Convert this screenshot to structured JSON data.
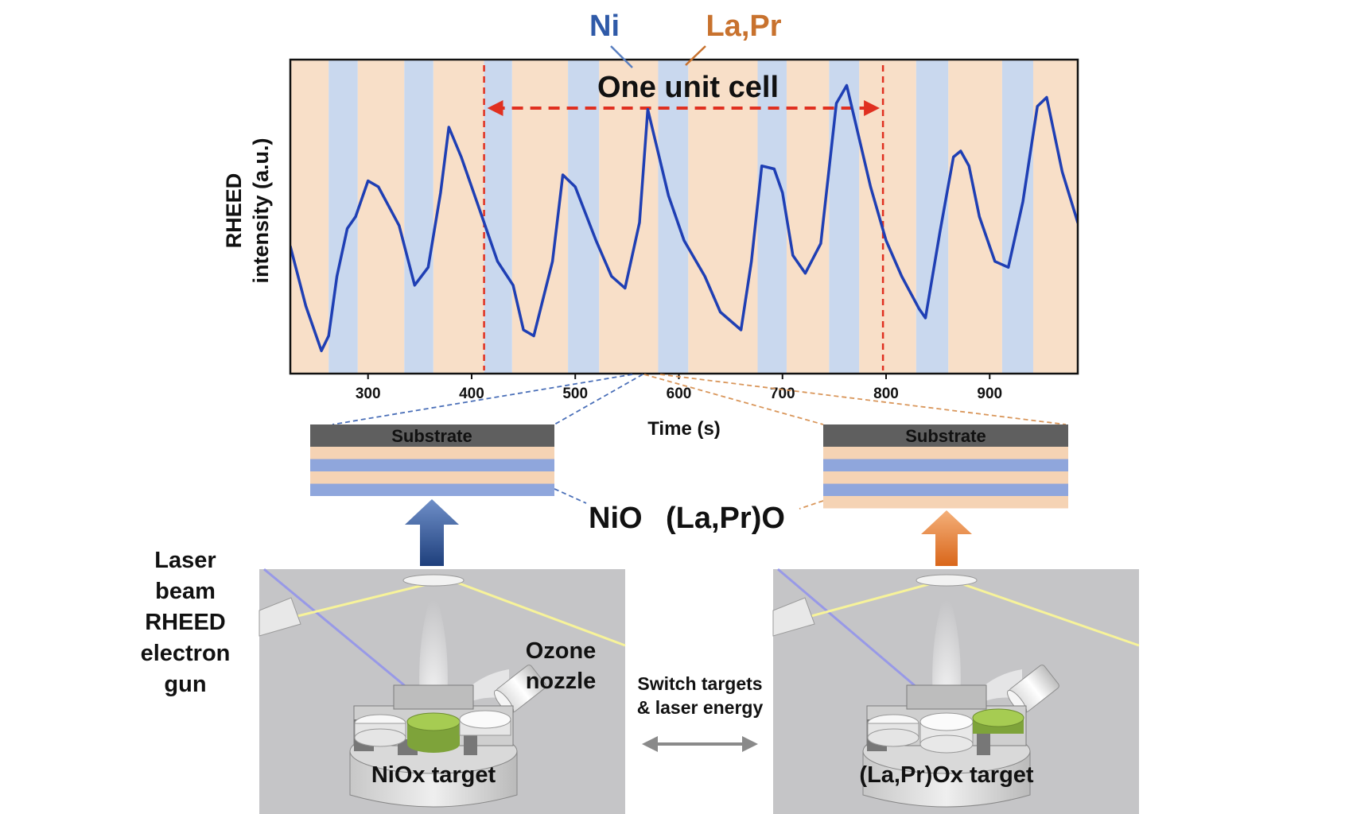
{
  "chart_data": {
    "type": "line",
    "title": "",
    "xlabel": "Time (s)",
    "ylabel": "RHEED intensity (a.u.)",
    "ylabel_lines": [
      "RHEED",
      "intensity (a.u.)"
    ],
    "xlim": [
      225,
      985
    ],
    "ylim": [
      0,
      1
    ],
    "x_ticks": [
      300,
      400,
      500,
      600,
      700,
      800,
      900
    ],
    "x_tick_labels": [
      "300",
      "400",
      "500",
      "600",
      "700",
      "800",
      "900"
    ],
    "grid": false,
    "series": [
      {
        "name": "RHEED intensity",
        "color": "#1f3fb4",
        "x": [
          225,
          240,
          255,
          262,
          270,
          280,
          288,
          300,
          310,
          330,
          345,
          358,
          370,
          378,
          390,
          410,
          425,
          440,
          450,
          460,
          478,
          488,
          500,
          520,
          535,
          548,
          562,
          570,
          590,
          605,
          625,
          640,
          660,
          670,
          680,
          692,
          700,
          710,
          722,
          737,
          752,
          762,
          785,
          800,
          815,
          832,
          838,
          852,
          865,
          872,
          880,
          890,
          905,
          918,
          932,
          946,
          955,
          970,
          985
        ],
        "y": [
          0.4,
          0.2,
          0.05,
          0.1,
          0.3,
          0.46,
          0.5,
          0.62,
          0.6,
          0.47,
          0.27,
          0.33,
          0.58,
          0.8,
          0.7,
          0.5,
          0.35,
          0.27,
          0.12,
          0.1,
          0.35,
          0.64,
          0.6,
          0.42,
          0.3,
          0.26,
          0.48,
          0.86,
          0.57,
          0.42,
          0.3,
          0.18,
          0.12,
          0.35,
          0.67,
          0.66,
          0.58,
          0.37,
          0.31,
          0.41,
          0.88,
          0.94,
          0.6,
          0.42,
          0.3,
          0.19,
          0.16,
          0.45,
          0.7,
          0.72,
          0.67,
          0.5,
          0.35,
          0.33,
          0.55,
          0.87,
          0.9,
          0.65,
          0.48
        ]
      }
    ],
    "bands": {
      "ni_color": "#c9d8ee",
      "lapr_color": "#f8dfc8",
      "ni": [
        [
          262,
          290
        ],
        [
          335,
          363
        ],
        [
          412,
          439
        ],
        [
          493,
          523
        ],
        [
          580,
          609
        ],
        [
          676,
          704
        ],
        [
          745,
          774
        ],
        [
          829,
          860
        ],
        [
          912,
          942
        ]
      ],
      "lapr": [
        [
          225,
          262
        ],
        [
          290,
          335
        ],
        [
          363,
          412
        ],
        [
          439,
          493
        ],
        [
          523,
          580
        ],
        [
          609,
          676
        ],
        [
          704,
          745
        ],
        [
          774,
          829
        ],
        [
          860,
          912
        ],
        [
          942,
          985
        ]
      ]
    },
    "unit_cell_markers_x": [
      412,
      797
    ],
    "annotations": {
      "ni_label": "Ni",
      "lapr_label": "La,Pr",
      "unit_cell_label": "One unit cell"
    }
  },
  "stacks": {
    "left": {
      "substrate_label": "Substrate",
      "layers": [
        "lapr",
        "ni",
        "lapr",
        "ni"
      ]
    },
    "right": {
      "substrate_label": "Substrate",
      "layers": [
        "lapr",
        "ni",
        "lapr",
        "ni",
        "lapr"
      ]
    }
  },
  "layer_labels": {
    "nio": "NiO",
    "lapro": "(La,Pr)O"
  },
  "colors": {
    "ni_layer": "#8fa6dc",
    "lapr_layer": "#f5d3b4",
    "substrate": "#5f5f5f",
    "arrow_blue": "#2d5aa0",
    "arrow_orange": "#e8781f",
    "red_marker": "#e03020",
    "ni_text": "#2f5aa8",
    "lapr_text": "#c8722e"
  },
  "chamber": {
    "left_target_label": "NiOx target",
    "right_target_label": "(La,Pr)Ox target",
    "ozone_label_lines": [
      "Ozone",
      "nozzle"
    ],
    "laser_label_lines": [
      "Laser",
      "beam",
      "RHEED",
      "electron",
      "gun"
    ],
    "switch_label_lines": [
      "Switch targets",
      "& laser energy"
    ]
  }
}
